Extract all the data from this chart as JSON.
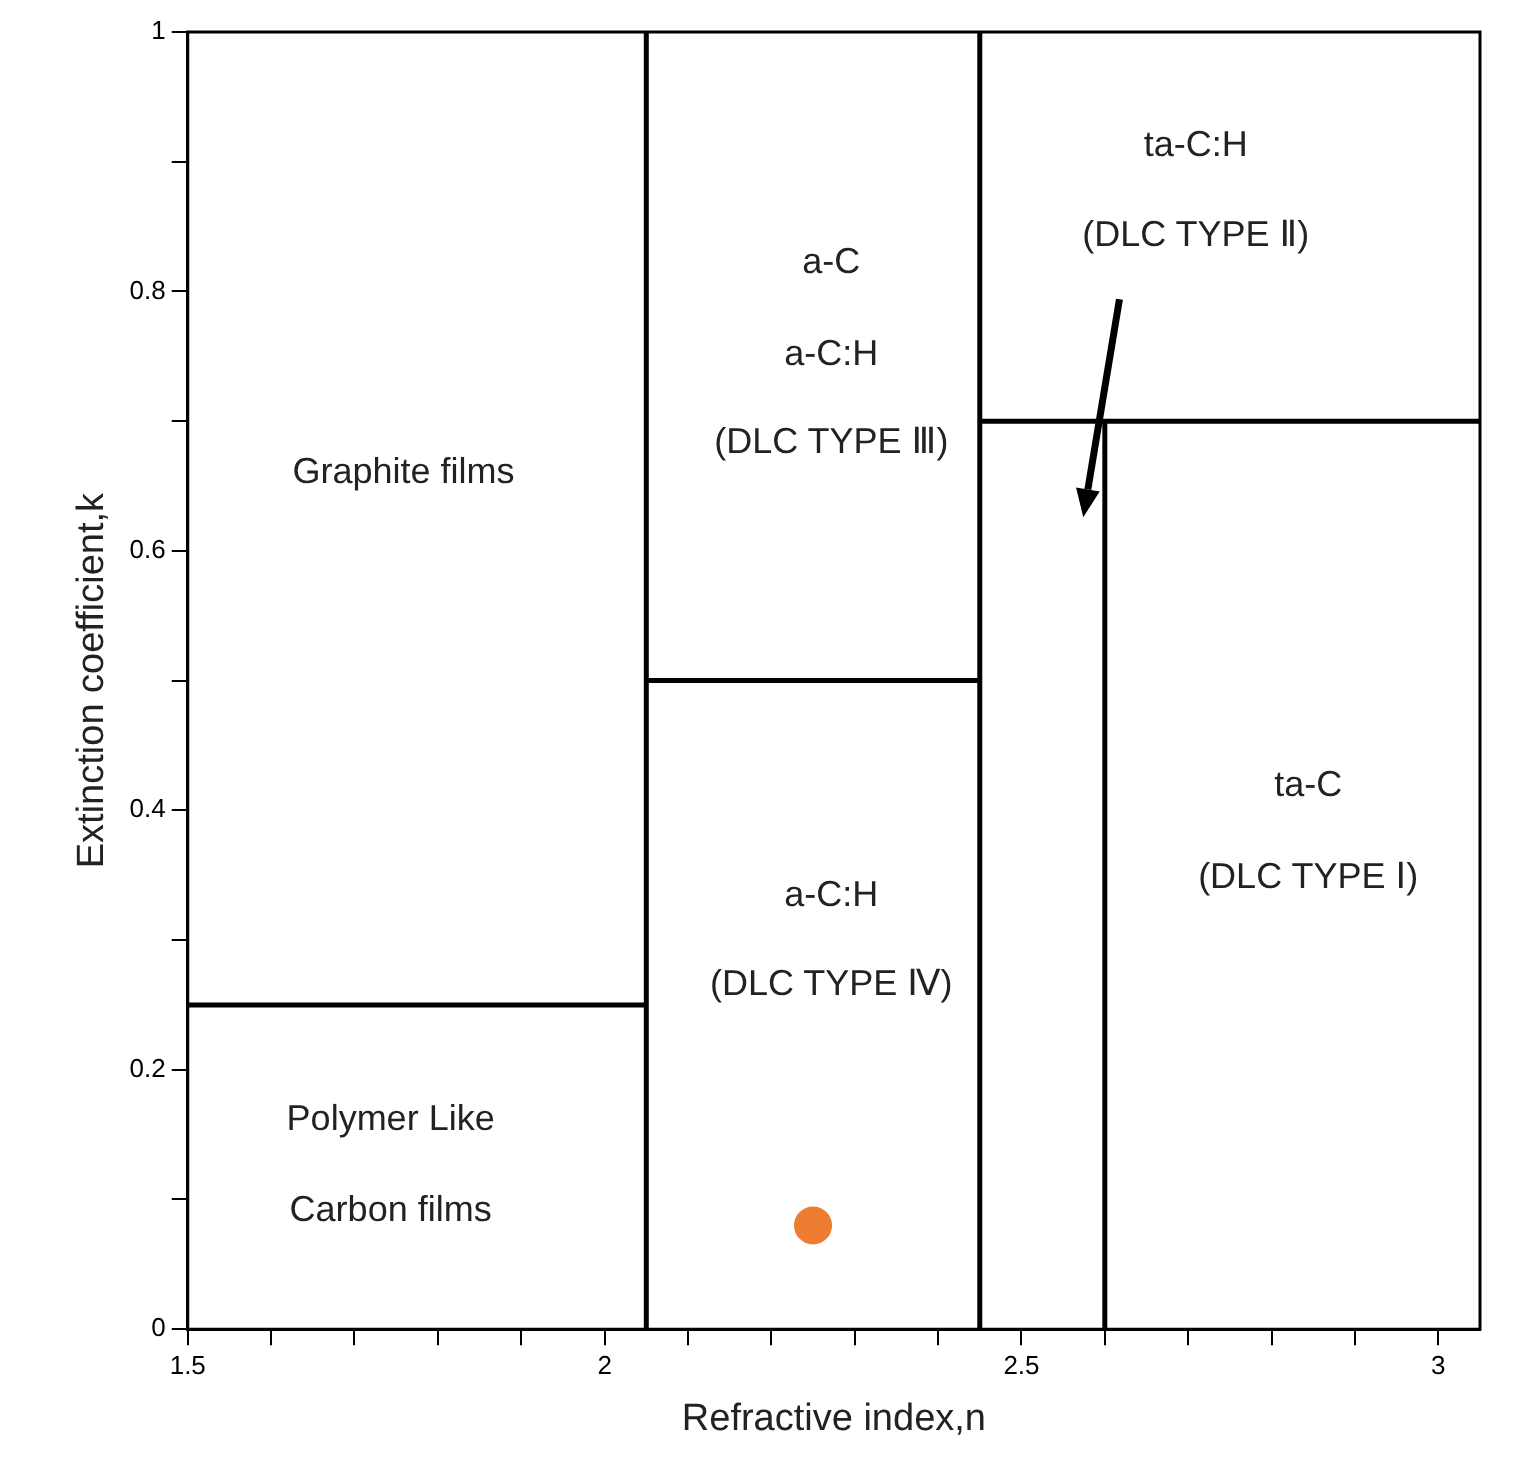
{
  "chart_data": {
    "type": "scatter",
    "xlabel": "Refractive index,n",
    "ylabel": "Extinction coefficient,k",
    "xlim": [
      1.5,
      3.05
    ],
    "ylim": [
      0,
      1
    ],
    "xticks": [
      1.5,
      {
        "value": 1.6,
        "label": null
      },
      {
        "value": 1.7,
        "label": null
      },
      {
        "value": 1.8,
        "label": null
      },
      {
        "value": 1.9,
        "label": null
      },
      2,
      {
        "value": 2.1,
        "label": null
      },
      {
        "value": 2.2,
        "label": null
      },
      {
        "value": 2.3,
        "label": null
      },
      {
        "value": 2.4,
        "label": null
      },
      2.5,
      {
        "value": 2.6,
        "label": null
      },
      {
        "value": 2.7,
        "label": null
      },
      {
        "value": 2.8,
        "label": null
      },
      {
        "value": 2.9,
        "label": null
      },
      3
    ],
    "yticks": [
      0,
      {
        "value": 0.1,
        "label": null
      },
      0.2,
      {
        "value": 0.3,
        "label": null
      },
      0.4,
      {
        "value": 0.5,
        "label": null
      },
      0.6,
      {
        "value": 0.7,
        "label": null
      },
      0.8,
      {
        "value": 0.9,
        "label": null
      },
      1
    ],
    "grid": false,
    "legend": false,
    "series": [
      {
        "type": "line",
        "color": "#000000",
        "marker": "none",
        "x": [
          1.5,
          2.05
        ],
        "values": [
          0.25,
          0.25
        ]
      },
      {
        "type": "line",
        "color": "#000000",
        "marker": "none",
        "x": [
          2.05,
          2.45
        ],
        "values": [
          0.5,
          0.5
        ]
      },
      {
        "type": "line",
        "color": "#000000",
        "marker": "none",
        "x": [
          2.45,
          3.05
        ],
        "values": [
          0.7,
          0.7
        ]
      },
      {
        "type": "line",
        "color": "#000000",
        "marker": "none",
        "x": [
          2.05,
          2.05
        ],
        "values": [
          0,
          1
        ]
      },
      {
        "type": "line",
        "color": "#000000",
        "marker": "none",
        "x": [
          2.45,
          2.45
        ],
        "values": [
          0,
          1
        ]
      },
      {
        "type": "line",
        "color": "#000000",
        "marker": "none",
        "x": [
          2.6,
          2.6
        ],
        "values": [
          0,
          0.7
        ]
      },
      {
        "color": "#ed7d31",
        "marker": "circle",
        "x": [
          2.25
        ],
        "values": [
          0.08
        ]
      }
    ],
    "annotations": [
      "Graphite films",
      "a-C",
      "a-C:H",
      "(DLC TYPE Ⅲ)",
      "ta-C:H",
      "(DLC TYPE Ⅱ)",
      "ta-C",
      "(DLC TYPE Ⅰ)",
      "a-C:H",
      "(DLC TYPE Ⅳ)",
      "Polymer Like",
      "Carbon films"
    ]
  }
}
